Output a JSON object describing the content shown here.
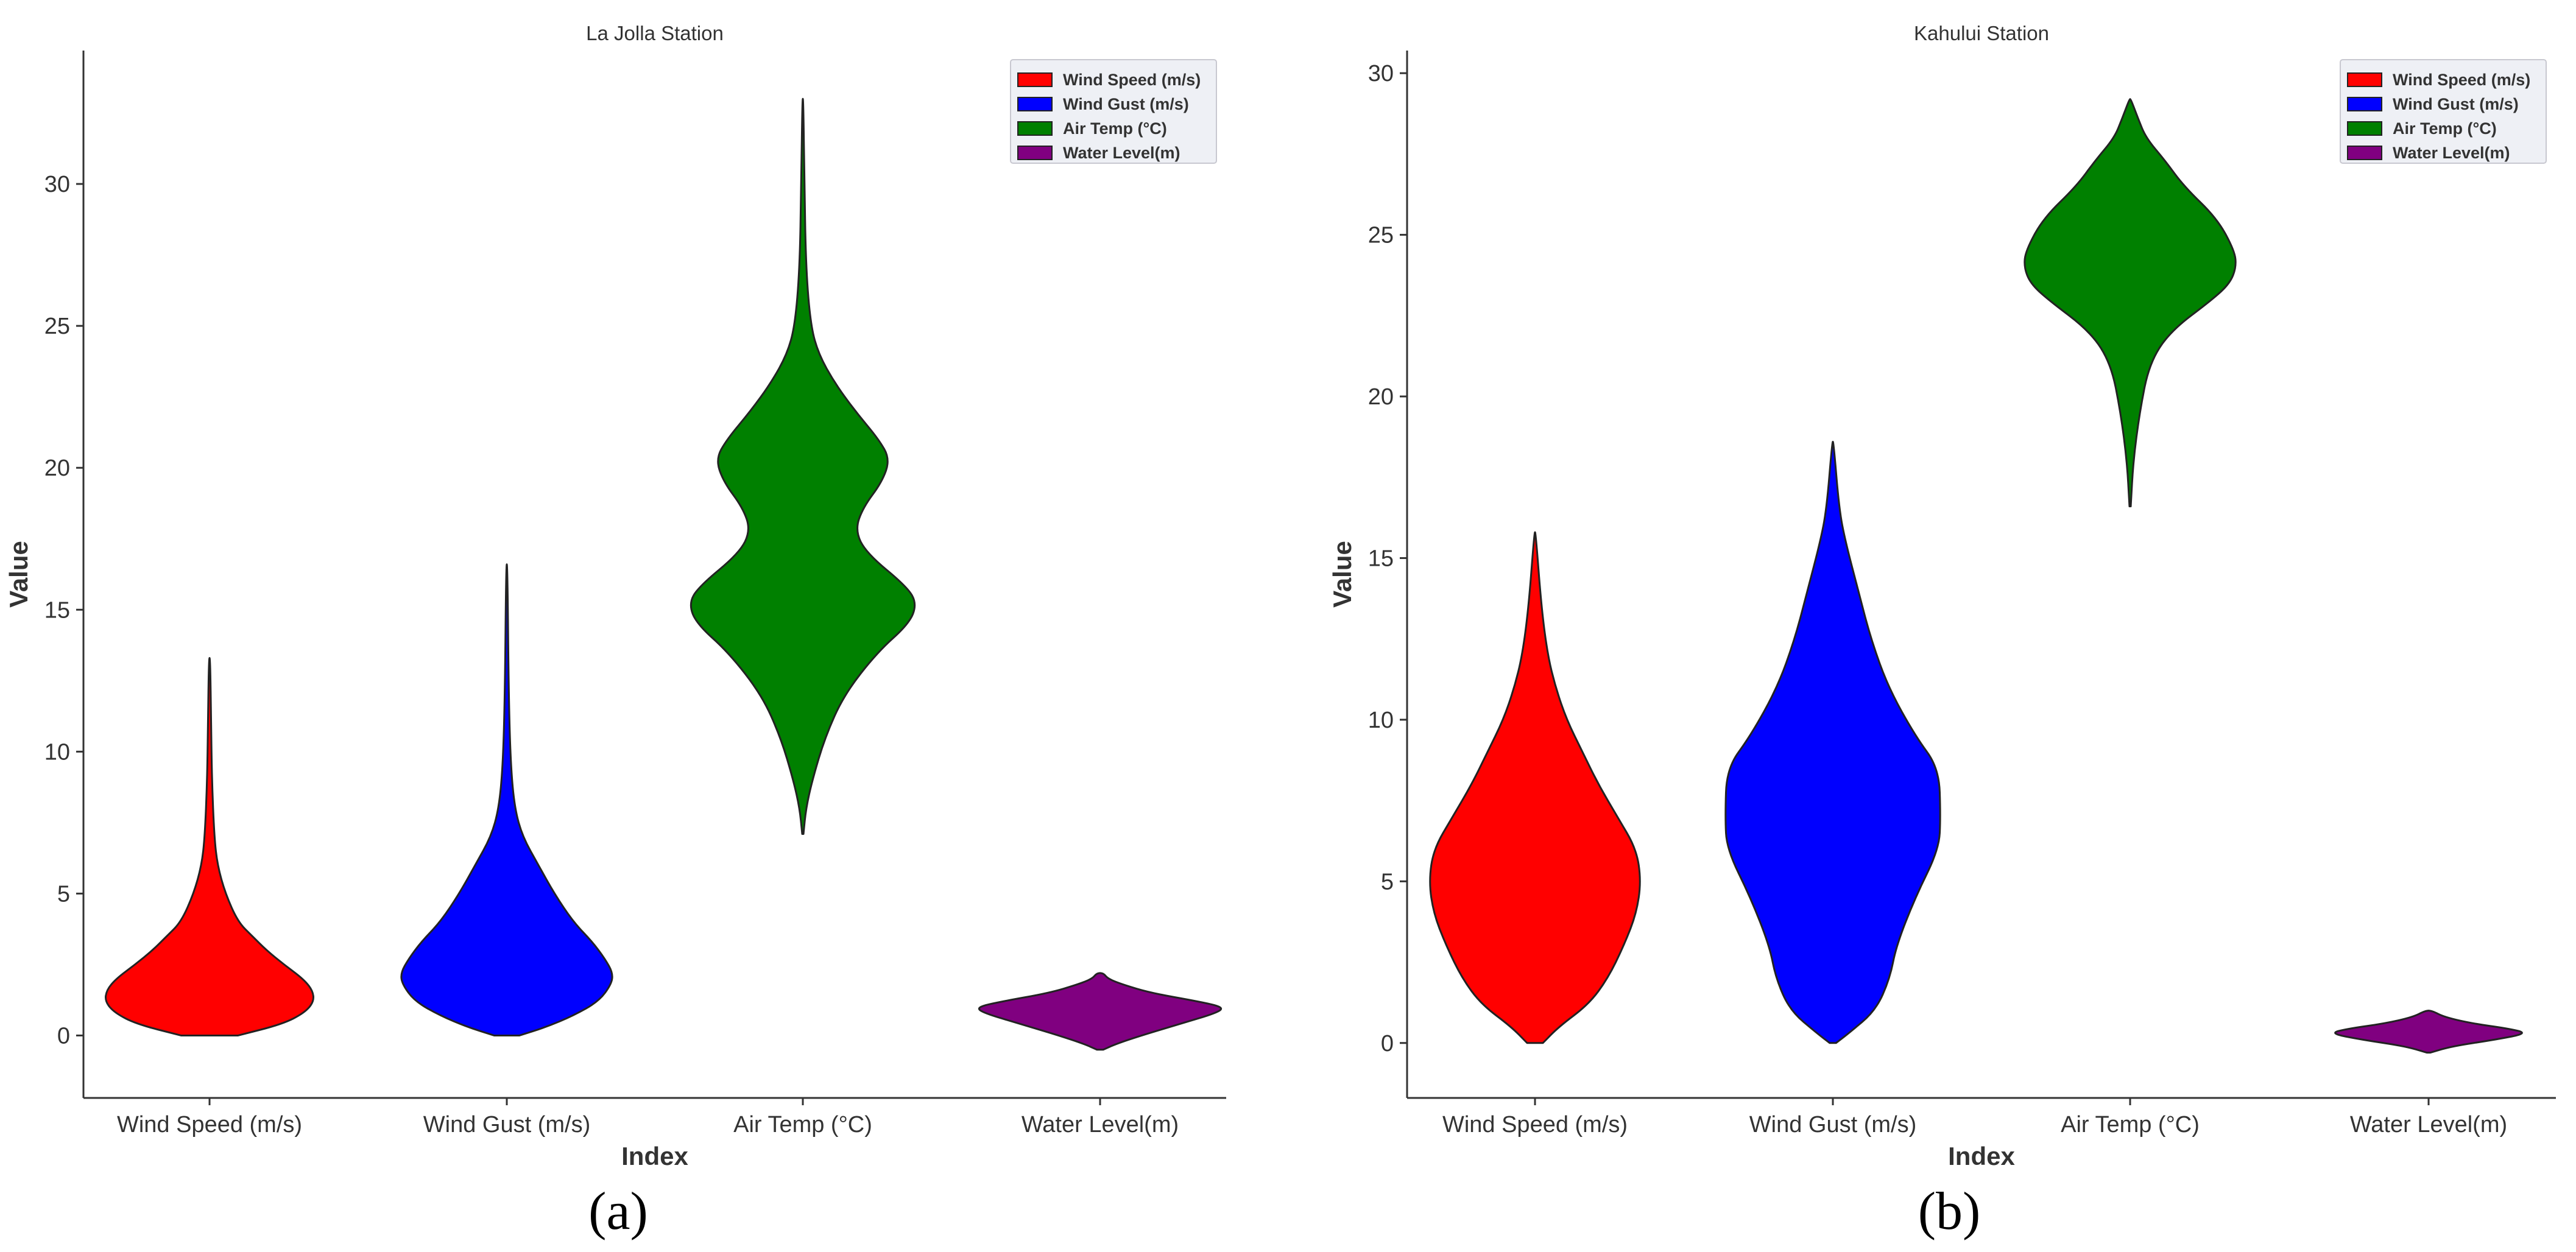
{
  "chart_data": [
    {
      "type": "violin",
      "panel": "(a)",
      "title": "La Jolla Station",
      "xlabel": "Index",
      "ylabel": "Value",
      "ylim": [
        -2.2,
        34.7
      ],
      "yticks": [
        0,
        5,
        10,
        15,
        20,
        25,
        30
      ],
      "categories": [
        "Wind Speed (m/s)",
        "Wind Gust (m/s)",
        "Air Temp (°C)",
        "Water Level(m)"
      ],
      "colors": [
        "#ff0000",
        "#0000ff",
        "#008000",
        "#800080"
      ],
      "series": [
        {
          "name": "Wind Speed (m/s)",
          "profile": [
            [
              0,
              0.18
            ],
            [
              0.4,
              0.46
            ],
            [
              0.8,
              0.6
            ],
            [
              1.2,
              0.66
            ],
            [
              1.6,
              0.65
            ],
            [
              2.0,
              0.59
            ],
            [
              2.5,
              0.47
            ],
            [
              3.0,
              0.36
            ],
            [
              3.5,
              0.27
            ],
            [
              4.0,
              0.18
            ],
            [
              5.0,
              0.1
            ],
            [
              6.0,
              0.05
            ],
            [
              7.0,
              0.03
            ],
            [
              9.0,
              0.015
            ],
            [
              11.0,
              0.01
            ],
            [
              13.3,
              0.004
            ]
          ]
        },
        {
          "name": "Wind Gust (m/s)",
          "profile": [
            [
              0,
              0.08
            ],
            [
              0.3,
              0.25
            ],
            [
              0.7,
              0.42
            ],
            [
              1.2,
              0.58
            ],
            [
              1.8,
              0.66
            ],
            [
              2.2,
              0.67
            ],
            [
              2.7,
              0.62
            ],
            [
              3.3,
              0.54
            ],
            [
              4.0,
              0.42
            ],
            [
              5.0,
              0.3
            ],
            [
              6.0,
              0.2
            ],
            [
              7.0,
              0.1
            ],
            [
              8.0,
              0.05
            ],
            [
              9.5,
              0.025
            ],
            [
              12.0,
              0.012
            ],
            [
              16.6,
              0.004
            ]
          ]
        },
        {
          "name": "Air Temp (°C)",
          "profile": [
            [
              7.1,
              0.004
            ],
            [
              8.0,
              0.02
            ],
            [
              9.0,
              0.06
            ],
            [
              10.5,
              0.14
            ],
            [
              12.0,
              0.26
            ],
            [
              13.5,
              0.47
            ],
            [
              14.5,
              0.67
            ],
            [
              15.2,
              0.72
            ],
            [
              15.8,
              0.66
            ],
            [
              17.0,
              0.4
            ],
            [
              17.8,
              0.33
            ],
            [
              18.6,
              0.38
            ],
            [
              19.5,
              0.5
            ],
            [
              20.3,
              0.55
            ],
            [
              21.0,
              0.48
            ],
            [
              22.0,
              0.33
            ],
            [
              23.0,
              0.2
            ],
            [
              24.0,
              0.1
            ],
            [
              25.0,
              0.05
            ],
            [
              27.0,
              0.02
            ],
            [
              30.0,
              0.01
            ],
            [
              33.0,
              0.003
            ]
          ]
        },
        {
          "name": "Water Level(m)",
          "profile": [
            [
              -0.5,
              0.02
            ],
            [
              -0.3,
              0.1
            ],
            [
              0,
              0.26
            ],
            [
              0.4,
              0.5
            ],
            [
              0.8,
              0.74
            ],
            [
              1.0,
              0.78
            ],
            [
              1.2,
              0.62
            ],
            [
              1.5,
              0.32
            ],
            [
              1.8,
              0.14
            ],
            [
              2.0,
              0.05
            ],
            [
              2.2,
              0.02
            ]
          ]
        }
      ],
      "legend": [
        "Wind Speed (m/s)",
        "Wind Gust (m/s)",
        "Air Temp (°C)",
        "Water Level(m)"
      ],
      "legend_loc": "top-right"
    },
    {
      "type": "violin",
      "panel": "(b)",
      "title": "Kahului Station",
      "xlabel": "Index",
      "ylabel": "Value",
      "ylim": [
        -1.7,
        30.7
      ],
      "yticks": [
        0,
        5,
        10,
        15,
        20,
        25,
        30
      ],
      "categories": [
        "Wind Speed (m/s)",
        "Wind Gust (m/s)",
        "Air Temp (°C)",
        "Water Level(m)"
      ],
      "colors": [
        "#ff0000",
        "#0000ff",
        "#008000",
        "#800080"
      ],
      "series": [
        {
          "name": "Wind Speed (m/s)",
          "profile": [
            [
              0,
              0.05
            ],
            [
              0.5,
              0.15
            ],
            [
              1.2,
              0.34
            ],
            [
              2.0,
              0.46
            ],
            [
              3.0,
              0.56
            ],
            [
              4.0,
              0.64
            ],
            [
              5.0,
              0.67
            ],
            [
              6.0,
              0.64
            ],
            [
              7.0,
              0.52
            ],
            [
              8.0,
              0.4
            ],
            [
              9.0,
              0.3
            ],
            [
              10.0,
              0.2
            ],
            [
              11.0,
              0.13
            ],
            [
              12.0,
              0.08
            ],
            [
              13.5,
              0.04
            ],
            [
              15.8,
              0.004
            ]
          ]
        },
        {
          "name": "Wind Gust (m/s)",
          "profile": [
            [
              0,
              0.02
            ],
            [
              0.3,
              0.1
            ],
            [
              1.0,
              0.27
            ],
            [
              2.0,
              0.36
            ],
            [
              3.0,
              0.4
            ],
            [
              4.5,
              0.52
            ],
            [
              6.0,
              0.67
            ],
            [
              7.0,
              0.68
            ],
            [
              8.5,
              0.67
            ],
            [
              9.5,
              0.52
            ],
            [
              11.0,
              0.35
            ],
            [
              12.5,
              0.24
            ],
            [
              14.0,
              0.16
            ],
            [
              15.5,
              0.08
            ],
            [
              16.5,
              0.04
            ],
            [
              18.6,
              0.004
            ]
          ]
        },
        {
          "name": "Air Temp (°C)",
          "profile": [
            [
              16.6,
              0.004
            ],
            [
              18.0,
              0.02
            ],
            [
              19.5,
              0.06
            ],
            [
              21.0,
              0.12
            ],
            [
              22.0,
              0.25
            ],
            [
              23.0,
              0.52
            ],
            [
              23.5,
              0.63
            ],
            [
              24.0,
              0.67
            ],
            [
              24.5,
              0.66
            ],
            [
              25.5,
              0.55
            ],
            [
              26.5,
              0.34
            ],
            [
              27.3,
              0.22
            ],
            [
              28.0,
              0.1
            ],
            [
              28.6,
              0.05
            ],
            [
              29.2,
              0.004
            ]
          ]
        },
        {
          "name": "Water Level(m)",
          "profile": [
            [
              -0.3,
              0.01
            ],
            [
              -0.1,
              0.15
            ],
            [
              0.1,
              0.42
            ],
            [
              0.3,
              0.63
            ],
            [
              0.45,
              0.5
            ],
            [
              0.6,
              0.28
            ],
            [
              0.8,
              0.1
            ],
            [
              1.0,
              0.02
            ]
          ]
        }
      ],
      "legend": [
        "Wind Speed (m/s)",
        "Wind Gust (m/s)",
        "Air Temp (°C)",
        "Water Level(m)"
      ],
      "legend_loc": "top-right"
    }
  ]
}
